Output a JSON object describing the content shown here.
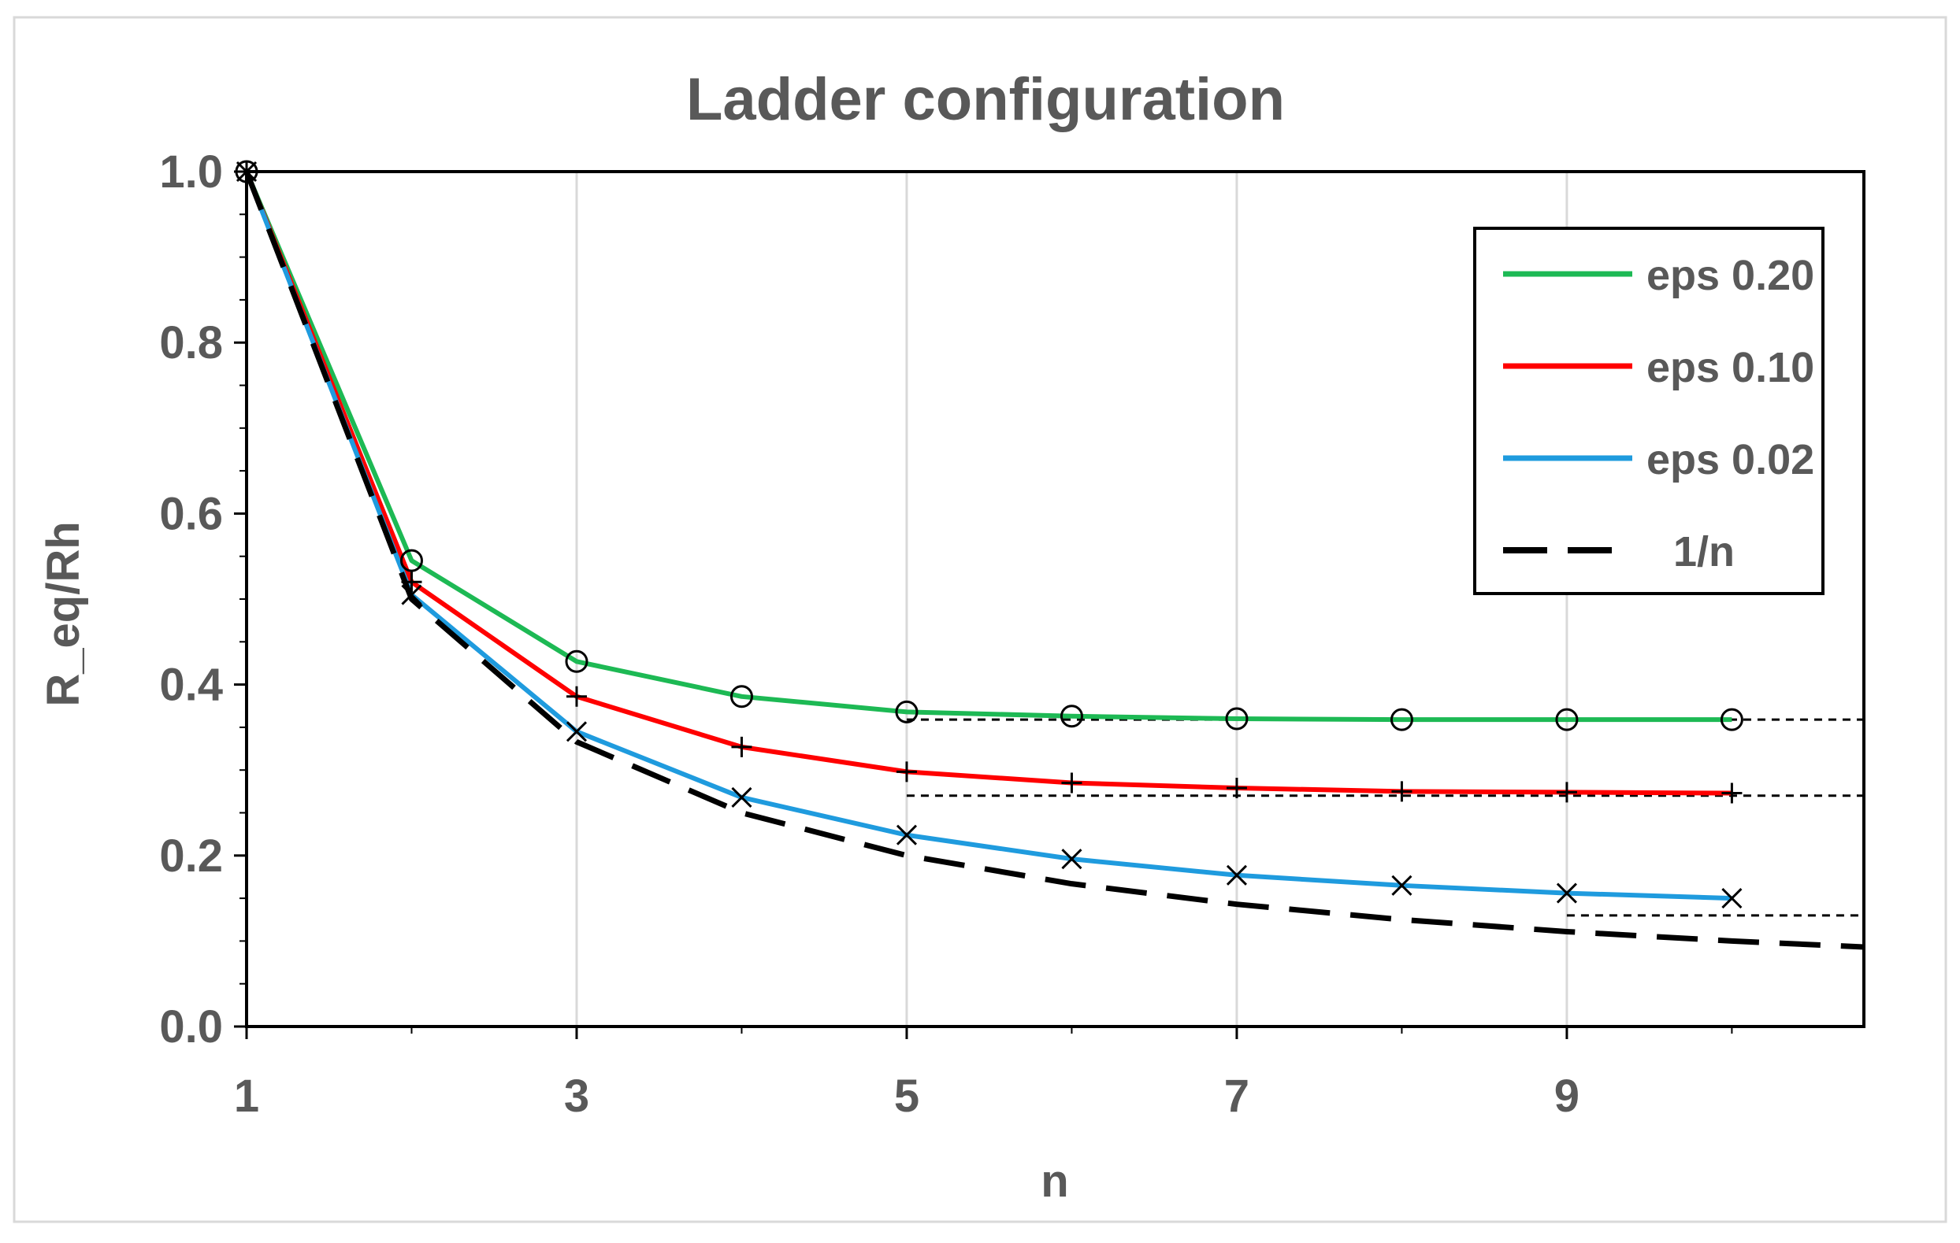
{
  "chart_data": {
    "type": "line",
    "title": "Ladder configuration",
    "xlabel": "n",
    "ylabel": "R_eq/Rh",
    "xlim": [
      1,
      10.8
    ],
    "ylim": [
      0,
      1
    ],
    "x_ticks": [
      1,
      3,
      5,
      7,
      9
    ],
    "x_tick_labels": [
      "1",
      "3",
      "5",
      "7",
      "9"
    ],
    "y_ticks": [
      0,
      0.2,
      0.4,
      0.6,
      0.8,
      1.0
    ],
    "y_tick_labels": [
      "0.0",
      "0.2",
      "0.4",
      "0.6",
      "0.8",
      "1.0"
    ],
    "grid": "vertical",
    "legend_position": "top-right",
    "x": [
      1,
      2,
      3,
      4,
      5,
      6,
      7,
      8,
      9,
      10
    ],
    "series": [
      {
        "name": "eps 0.20",
        "color": "#1db954",
        "marker": "circle",
        "values": [
          1.0,
          0.545,
          0.427,
          0.386,
          0.368,
          0.363,
          0.36,
          0.359,
          0.359,
          0.359
        ],
        "asymptote": 0.359,
        "asymptote_from": 5
      },
      {
        "name": "eps 0.10",
        "color": "#ff0000",
        "marker": "plus",
        "values": [
          1.0,
          0.52,
          0.386,
          0.327,
          0.298,
          0.285,
          0.279,
          0.275,
          0.274,
          0.273
        ],
        "asymptote": 0.27,
        "asymptote_from": 5
      },
      {
        "name": "eps 0.02",
        "color": "#1f9bde",
        "marker": "x",
        "values": [
          1.0,
          0.505,
          0.345,
          0.268,
          0.224,
          0.196,
          0.177,
          0.165,
          0.156,
          0.15
        ],
        "asymptote": 0.13,
        "asymptote_from": 9
      },
      {
        "name": "1/n",
        "color": "#000000",
        "marker": "none",
        "dashed": true,
        "x": [
          1,
          2,
          3,
          4,
          5,
          6,
          7,
          8,
          9,
          10,
          10.8
        ],
        "values": [
          1.0,
          0.5,
          0.333,
          0.25,
          0.2,
          0.167,
          0.143,
          0.125,
          0.111,
          0.1,
          0.093
        ]
      }
    ]
  }
}
